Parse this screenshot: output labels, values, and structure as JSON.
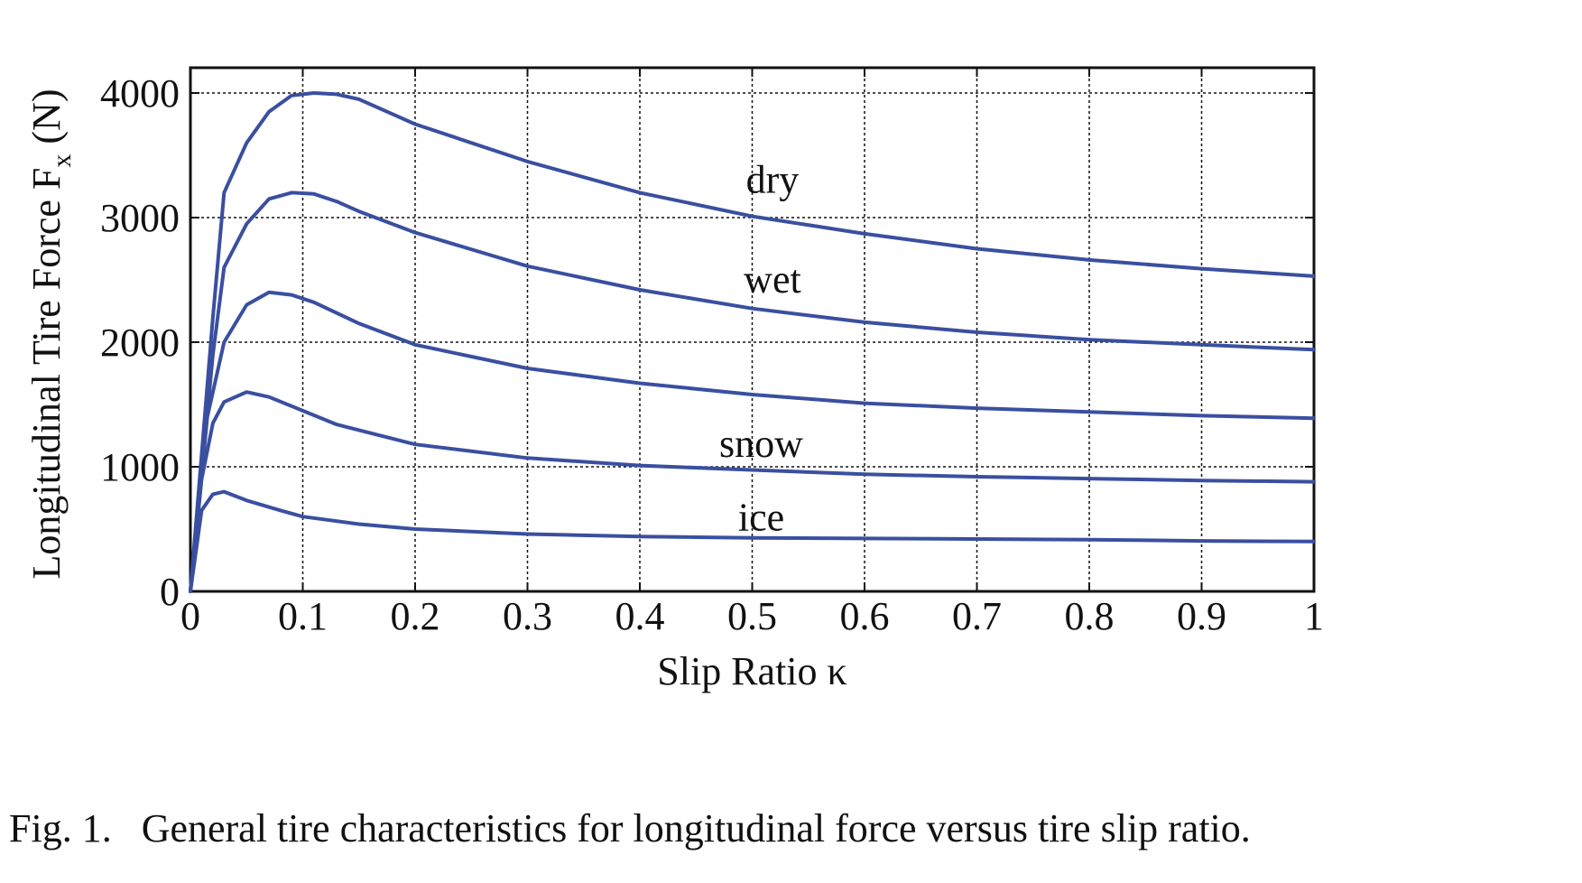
{
  "caption": "Fig. 1.   General tire characteristics for longitudinal force versus tire slip ratio.",
  "chart_data": {
    "type": "line",
    "title": "",
    "xlabel": "Slip Ratio κ",
    "ylabel_main": "Longitudinal Tire Force F",
    "ylabel_sub": "x",
    "ylabel_unit": " (N)",
    "xlim": [
      0,
      1
    ],
    "ylim": [
      0,
      4200
    ],
    "x_ticks": [
      0,
      0.1,
      0.2,
      0.3,
      0.4,
      0.5,
      0.6,
      0.7,
      0.8,
      0.9,
      1
    ],
    "x_tick_labels": [
      "0",
      "0.1",
      "0.2",
      "0.3",
      "0.4",
      "0.5",
      "0.6",
      "0.7",
      "0.8",
      "0.9",
      "1"
    ],
    "y_ticks": [
      0,
      1000,
      2000,
      3000,
      4000
    ],
    "y_tick_labels": [
      "0",
      "1000",
      "2000",
      "3000",
      "4000"
    ],
    "grid": true,
    "line_color": "#3a4fa0",
    "series": [
      {
        "name": "dry",
        "x": [
          0,
          0.02,
          0.03,
          0.05,
          0.07,
          0.09,
          0.11,
          0.13,
          0.15,
          0.2,
          0.3,
          0.4,
          0.5,
          0.6,
          0.7,
          0.8,
          0.9,
          1.0
        ],
        "y": [
          0,
          2200,
          3200,
          3600,
          3850,
          3980,
          4000,
          3990,
          3950,
          3750,
          3450,
          3200,
          3010,
          2870,
          2750,
          2660,
          2590,
          2530
        ],
        "label_pos": [
          0.51,
          3300
        ]
      },
      {
        "name": "wet",
        "x": [
          0,
          0.02,
          0.03,
          0.05,
          0.07,
          0.09,
          0.11,
          0.13,
          0.15,
          0.2,
          0.3,
          0.4,
          0.5,
          0.6,
          0.7,
          0.8,
          0.9,
          1.0
        ],
        "y": [
          0,
          1900,
          2600,
          2950,
          3150,
          3200,
          3190,
          3130,
          3050,
          2880,
          2610,
          2420,
          2270,
          2160,
          2080,
          2020,
          1980,
          1940
        ],
        "label_pos": [
          0.51,
          2500
        ]
      },
      {
        "name": "",
        "x": [
          0,
          0.015,
          0.03,
          0.05,
          0.07,
          0.09,
          0.11,
          0.15,
          0.2,
          0.3,
          0.4,
          0.5,
          0.6,
          0.7,
          0.8,
          0.9,
          1.0
        ],
        "y": [
          0,
          1400,
          2000,
          2300,
          2400,
          2380,
          2320,
          2150,
          1980,
          1790,
          1670,
          1580,
          1510,
          1470,
          1440,
          1410,
          1390
        ],
        "label_pos": null
      },
      {
        "name": "snow",
        "x": [
          0,
          0.01,
          0.02,
          0.03,
          0.05,
          0.07,
          0.1,
          0.13,
          0.2,
          0.3,
          0.4,
          0.5,
          0.6,
          0.7,
          0.8,
          0.9,
          1.0
        ],
        "y": [
          0,
          900,
          1350,
          1520,
          1600,
          1560,
          1450,
          1340,
          1180,
          1070,
          1010,
          975,
          940,
          920,
          905,
          890,
          880
        ],
        "label_pos": [
          0.5,
          1180
        ]
      },
      {
        "name": "ice",
        "x": [
          0,
          0.01,
          0.02,
          0.03,
          0.05,
          0.08,
          0.1,
          0.15,
          0.2,
          0.3,
          0.4,
          0.5,
          0.6,
          0.7,
          0.8,
          0.9,
          1.0
        ],
        "y": [
          0,
          650,
          780,
          800,
          730,
          650,
          600,
          540,
          500,
          460,
          440,
          430,
          425,
          420,
          415,
          405,
          400
        ],
        "label_pos": [
          0.5,
          590
        ]
      }
    ]
  }
}
